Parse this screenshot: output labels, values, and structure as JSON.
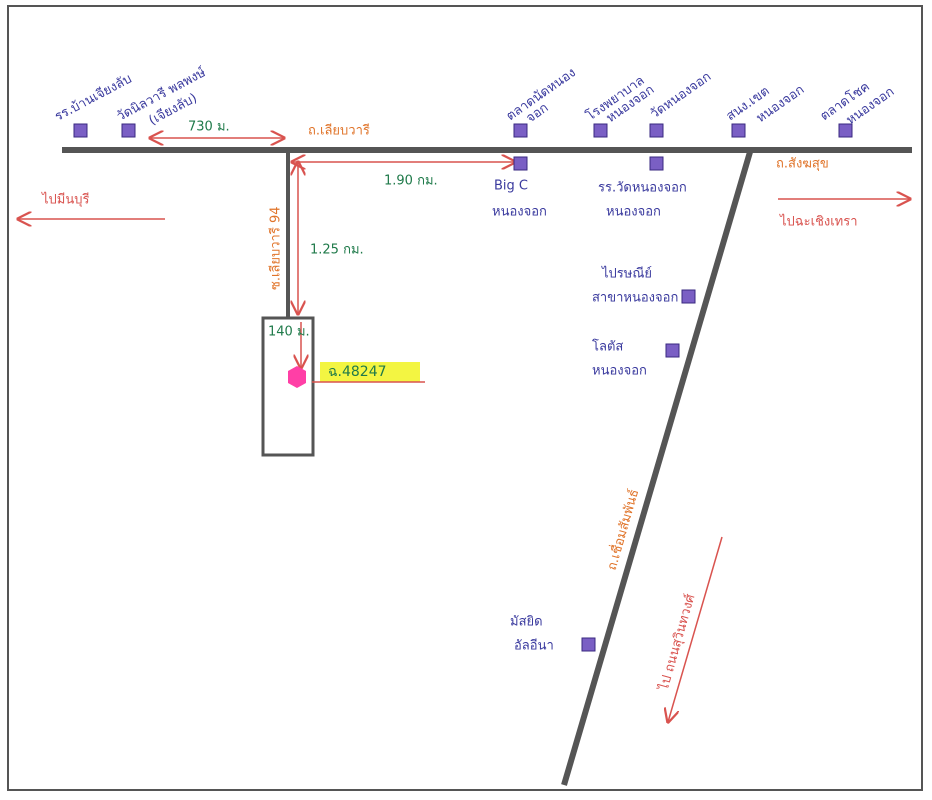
{
  "places": [
    {
      "lines": [
        "รร.บ้านเจียงลับ"
      ]
    },
    {
      "lines": [
        "วัดนิลวารี พลพงษ์",
        "(เจียงลับ)"
      ]
    },
    {
      "lines": [
        "ตลาดนัดหนอง",
        "จอก"
      ]
    },
    {
      "lines": [
        "โรงพยาบาล",
        "หนองจอก"
      ]
    },
    {
      "lines": [
        "วัดหนองจอก"
      ]
    },
    {
      "lines": [
        "สนง.เขต",
        "หนองจอก"
      ]
    },
    {
      "lines": [
        "ตลาดโชค",
        "หนองจอก"
      ]
    },
    {
      "lines": [
        "Big C",
        "หนองจอก"
      ]
    },
    {
      "lines": [
        "รร.วัดหนองจอก",
        "หนองจอก"
      ]
    },
    {
      "lines": [
        "ไปรษณีย์",
        "สาขาหนองจอก"
      ]
    },
    {
      "lines": [
        "โลตัส",
        "หนองจอก"
      ]
    },
    {
      "lines": [
        "มัสยิด",
        "อัลอีนา"
      ]
    }
  ],
  "roads": [
    "ถ.เลียบวารี",
    "ซ.เลียบวารี 94",
    "ถ.สังฆสุข",
    "ถ.เชื่อมสัมพันธ์"
  ],
  "distances": [
    "730 ม.",
    "1.90 กม.",
    "1.25 กม.",
    "140 ม."
  ],
  "directions": [
    "ไปมีนบุรี",
    "ไปฉะเชิงเทรา",
    "ไป ถนนสุวินทวงศ์"
  ],
  "target": {
    "label": "ฉ.48247"
  }
}
